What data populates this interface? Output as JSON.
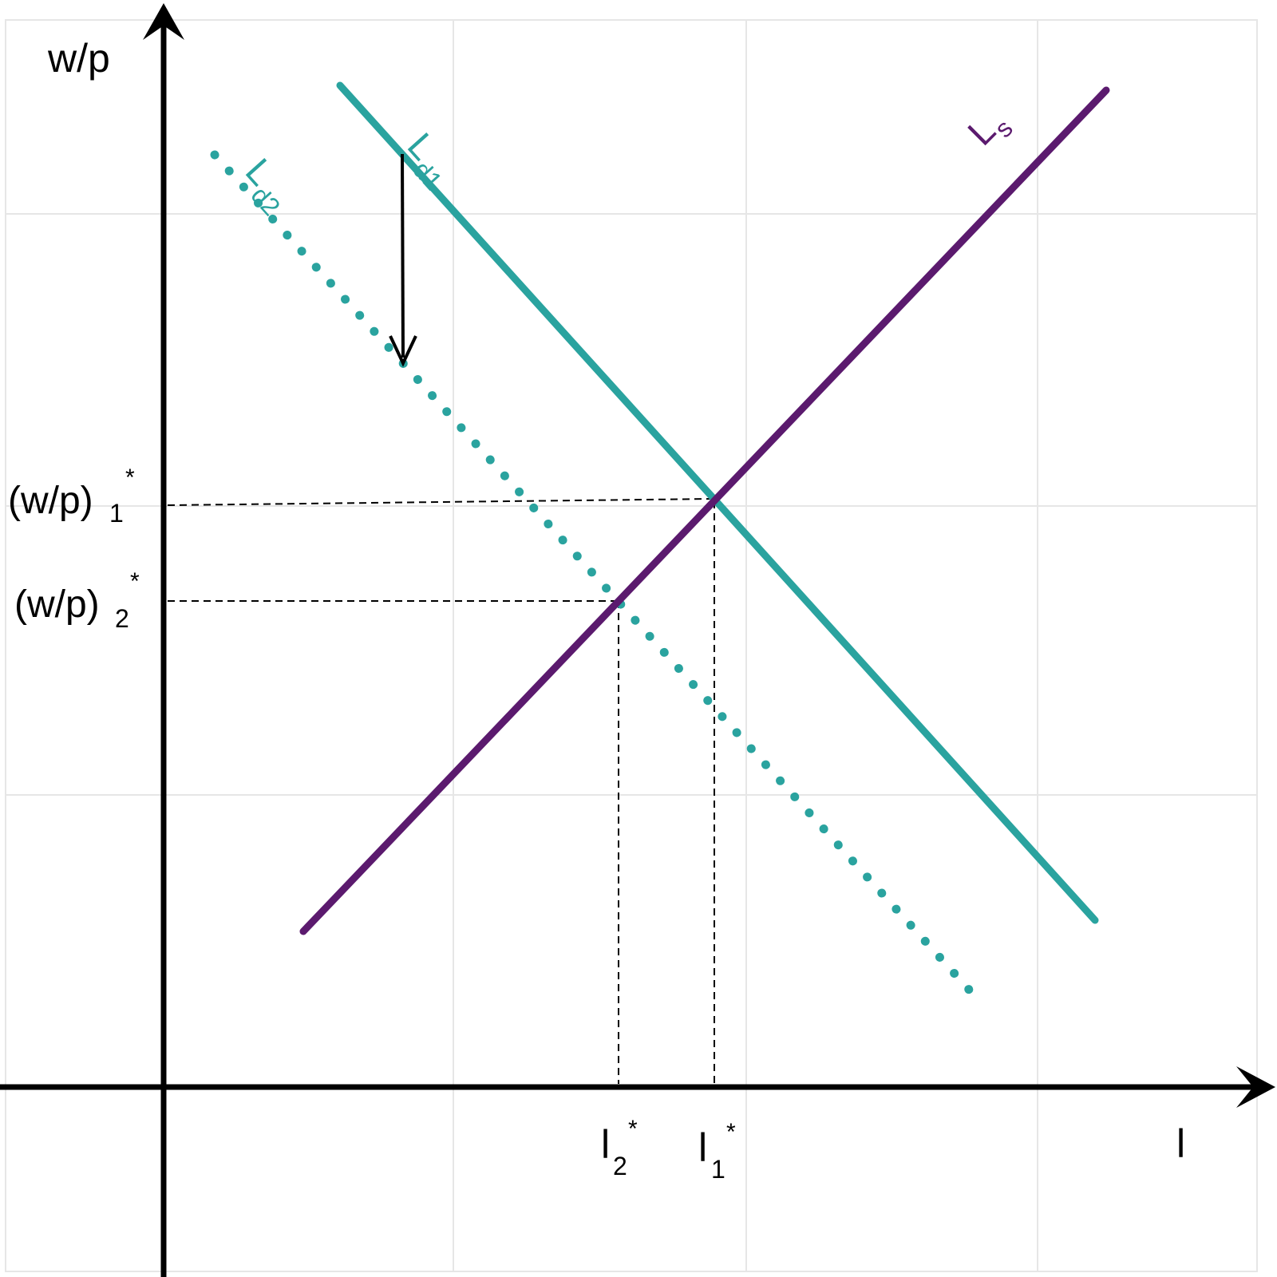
{
  "colors": {
    "demand": "#2aa39f",
    "supply": "#5b1a6e",
    "axis": "#000000",
    "grid": "#e6e6e6",
    "guides": "#000000"
  },
  "axes": {
    "y_label": "w/p",
    "x_label": "l"
  },
  "curves": {
    "ld1": {
      "main": "L",
      "sub": "d1",
      "style": "solid"
    },
    "ld2": {
      "main": "L",
      "sub": "d2",
      "style": "dotted"
    },
    "ls": {
      "main": "L",
      "sub": "s",
      "style": "solid"
    }
  },
  "equilibria": {
    "wp1": {
      "base": "(w/p)",
      "sub": "1",
      "sup": "*"
    },
    "wp2": {
      "base": "(w/p)",
      "sub": "2",
      "sup": "*"
    },
    "l1": {
      "base": "l",
      "sub": "1",
      "sup": "*"
    },
    "l2": {
      "base": "l",
      "sub": "2",
      "sup": "*"
    }
  },
  "shift_arrow": {
    "direction": "down",
    "from": "ld1",
    "to": "ld2"
  }
}
